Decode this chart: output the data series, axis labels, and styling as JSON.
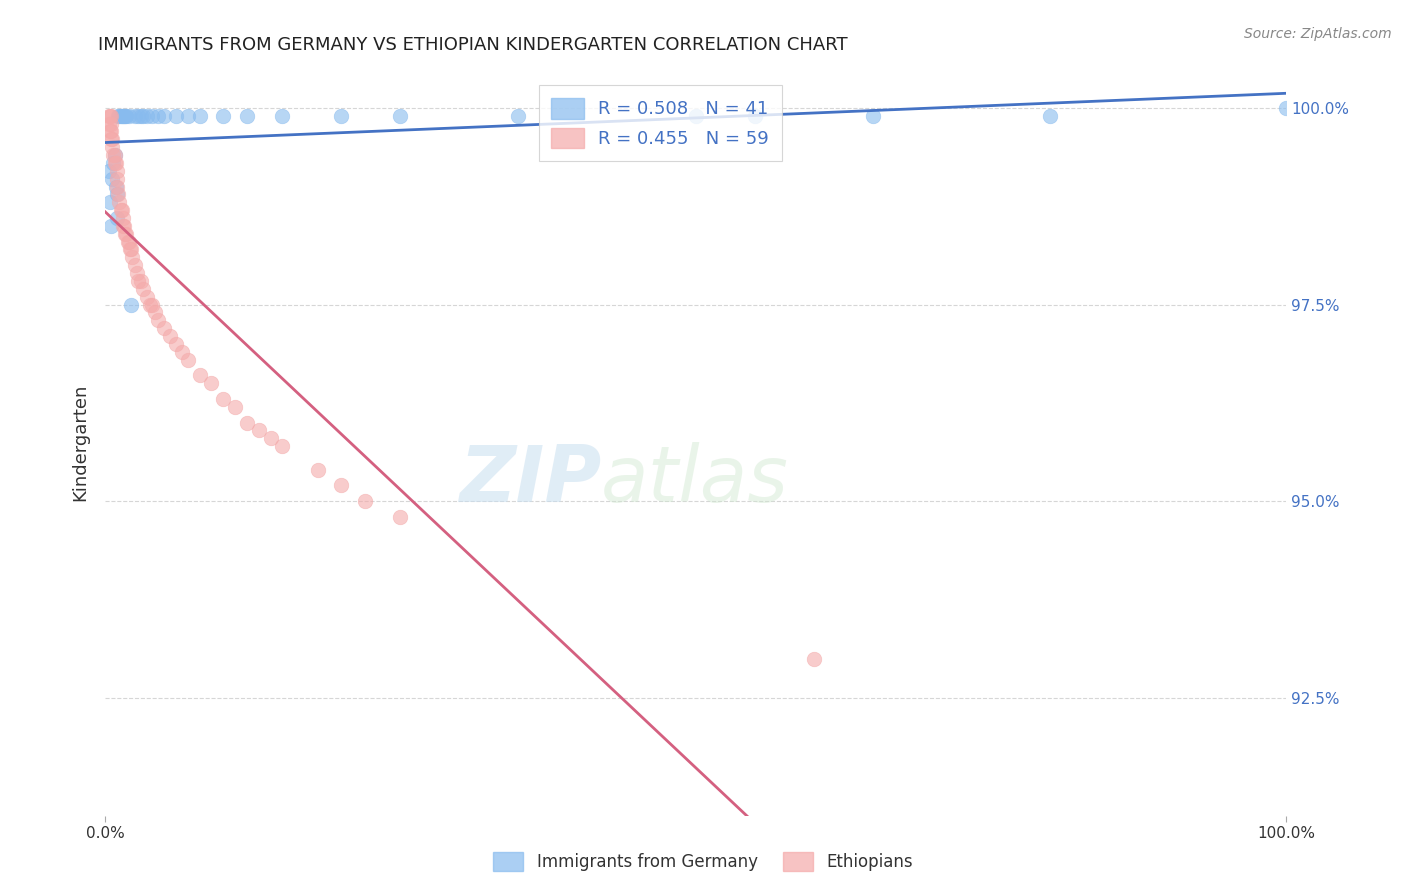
{
  "title": "IMMIGRANTS FROM GERMANY VS ETHIOPIAN KINDERGARTEN CORRELATION CHART",
  "source": "Source: ZipAtlas.com",
  "ylabel": "Kindergarten",
  "watermark_zip": "ZIP",
  "watermark_atlas": "atlas",
  "xlim": [
    0.0,
    1.0
  ],
  "ylim": [
    0.91,
    1.005
  ],
  "ytick_values": [
    0.925,
    0.95,
    0.975,
    1.0
  ],
  "ytick_labels": [
    "92.5%",
    "95.0%",
    "97.5%",
    "100.0%"
  ],
  "xtick_values": [
    0.0,
    1.0
  ],
  "xtick_labels": [
    "0.0%",
    "100.0%"
  ],
  "germany_color": "#88bbee",
  "ethiopia_color": "#f4aaaa",
  "germany_line_color": "#4472c4",
  "ethiopia_line_color": "#d46080",
  "germany_R": 0.508,
  "germany_N": 41,
  "ethiopia_R": 0.455,
  "ethiopia_N": 59,
  "legend_text_color": "#4472c4",
  "right_axis_color": "#4472c4",
  "germany_scatter_x": [
    0.003,
    0.004,
    0.005,
    0.006,
    0.007,
    0.008,
    0.009,
    0.01,
    0.01,
    0.011,
    0.012,
    0.013,
    0.014,
    0.015,
    0.016,
    0.017,
    0.018,
    0.02,
    0.022,
    0.025,
    0.028,
    0.03,
    0.032,
    0.035,
    0.04,
    0.045,
    0.05,
    0.06,
    0.07,
    0.08,
    0.1,
    0.12,
    0.15,
    0.2,
    0.25,
    0.35,
    0.5,
    0.55,
    0.65,
    0.8,
    1.0
  ],
  "germany_scatter_y": [
    0.992,
    0.988,
    0.985,
    0.991,
    0.993,
    0.994,
    0.99,
    0.986,
    0.989,
    0.999,
    0.999,
    0.999,
    0.999,
    0.999,
    0.999,
    0.999,
    0.999,
    0.999,
    0.975,
    0.999,
    0.999,
    0.999,
    0.999,
    0.999,
    0.999,
    0.999,
    0.999,
    0.999,
    0.999,
    0.999,
    0.999,
    0.999,
    0.999,
    0.999,
    0.999,
    0.999,
    0.999,
    0.999,
    0.999,
    0.999,
    1.0
  ],
  "ethiopia_scatter_x": [
    0.003,
    0.003,
    0.004,
    0.004,
    0.005,
    0.005,
    0.005,
    0.005,
    0.006,
    0.006,
    0.007,
    0.008,
    0.008,
    0.009,
    0.01,
    0.01,
    0.01,
    0.011,
    0.012,
    0.013,
    0.014,
    0.015,
    0.015,
    0.016,
    0.017,
    0.018,
    0.019,
    0.02,
    0.021,
    0.022,
    0.023,
    0.025,
    0.027,
    0.028,
    0.03,
    0.032,
    0.035,
    0.038,
    0.04,
    0.042,
    0.045,
    0.05,
    0.055,
    0.06,
    0.065,
    0.07,
    0.08,
    0.09,
    0.1,
    0.11,
    0.12,
    0.13,
    0.14,
    0.15,
    0.18,
    0.2,
    0.22,
    0.25,
    0.6
  ],
  "ethiopia_scatter_y": [
    0.999,
    0.998,
    0.999,
    0.997,
    0.999,
    0.998,
    0.997,
    0.996,
    0.996,
    0.995,
    0.994,
    0.994,
    0.993,
    0.993,
    0.992,
    0.991,
    0.99,
    0.989,
    0.988,
    0.987,
    0.987,
    0.986,
    0.985,
    0.985,
    0.984,
    0.984,
    0.983,
    0.983,
    0.982,
    0.982,
    0.981,
    0.98,
    0.979,
    0.978,
    0.978,
    0.977,
    0.976,
    0.975,
    0.975,
    0.974,
    0.973,
    0.972,
    0.971,
    0.97,
    0.969,
    0.968,
    0.966,
    0.965,
    0.963,
    0.962,
    0.96,
    0.959,
    0.958,
    0.957,
    0.954,
    0.952,
    0.95,
    0.948,
    0.93
  ],
  "bg_color": "#ffffff",
  "grid_color": "#cccccc",
  "title_fontsize": 13,
  "source_fontsize": 10,
  "tick_fontsize": 11,
  "legend_fontsize": 13
}
